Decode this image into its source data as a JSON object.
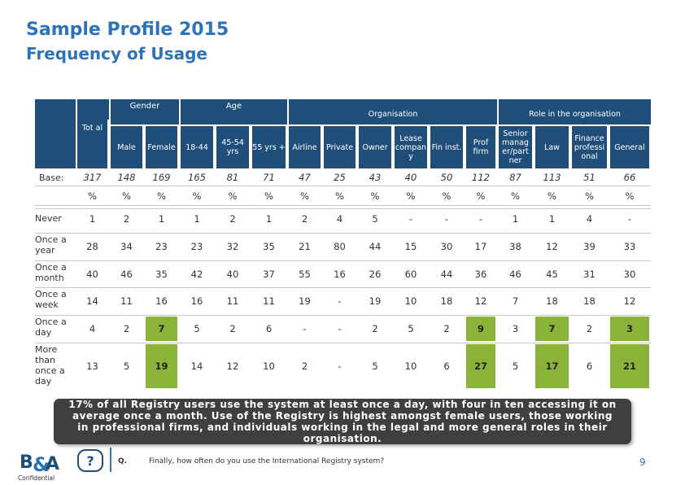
{
  "title": "Sample Profile 2015",
  "subtitle": "Frequency of Usage",
  "groups": {
    "gender": "Gender",
    "age": "Age",
    "organisation": "Organisation",
    "role": "Role in the organisation"
  },
  "columns": [
    "Tot al",
    "Male",
    "Female",
    "18-44",
    "45-54 yrs",
    "55 yrs +",
    "Airline",
    "Private",
    "Owner",
    "Lease compan y",
    "Fin inst.",
    "Prof firm",
    "Senior manag er/part ner",
    "Law",
    "Finance professi onal",
    "General"
  ],
  "base_label": "Base:",
  "base": [
    "317",
    "148",
    "169",
    "165",
    "81",
    "71",
    "47",
    "25",
    "43",
    "40",
    "50",
    "112",
    "87",
    "113",
    "51",
    "66"
  ],
  "pct": [
    "%",
    "%",
    "%",
    "%",
    "%",
    "%",
    "%",
    "%",
    "%",
    "%",
    "%",
    "%",
    "%",
    "%",
    "%",
    "%"
  ],
  "rows": [
    {
      "label": "Never",
      "values": [
        "1",
        "2",
        "1",
        "1",
        "2",
        "1",
        "2",
        "4",
        "5",
        "-",
        "-",
        "-",
        "1",
        "1",
        "4",
        "-"
      ]
    },
    {
      "label": "Once a year",
      "values": [
        "28",
        "34",
        "23",
        "23",
        "32",
        "35",
        "21",
        "80",
        "44",
        "15",
        "30",
        "17",
        "38",
        "12",
        "39",
        "33"
      ]
    },
    {
      "label": "Once a month",
      "values": [
        "40",
        "46",
        "35",
        "42",
        "40",
        "37",
        "55",
        "16",
        "26",
        "60",
        "44",
        "36",
        "46",
        "45",
        "31",
        "30"
      ]
    },
    {
      "label": "Once a week",
      "values": [
        "14",
        "11",
        "16",
        "16",
        "11",
        "11",
        "19",
        "-",
        "19",
        "10",
        "18",
        "12",
        "7",
        "18",
        "18",
        "12"
      ]
    },
    {
      "label": "Once a day",
      "values": [
        "4",
        "2",
        "7",
        "5",
        "2",
        "6",
        "-",
        "-",
        "2",
        "5",
        "2",
        "9",
        "3",
        "7",
        "2",
        "3"
      ]
    },
    {
      "label": "More than once a day",
      "values": [
        "13",
        "5",
        "19",
        "14",
        "12",
        "10",
        "2",
        "-",
        "5",
        "10",
        "6",
        "27",
        "5",
        "17",
        "6",
        "21"
      ]
    }
  ],
  "highlights": [
    [
      4,
      2
    ],
    [
      4,
      11
    ],
    [
      4,
      13
    ],
    [
      4,
      15
    ],
    [
      5,
      2
    ],
    [
      5,
      11
    ],
    [
      5,
      13
    ],
    [
      5,
      15
    ]
  ],
  "callout": "17% of all Registry users use the system at least once a day, with four in ten accessing it on average once a month. Use of the Registry is highest amongst female users, those working in professional firms, and individuals working in the legal and more general roles in their organisation.",
  "footer": {
    "help": "?",
    "q_label": "Q.",
    "question": "Finally, how often do you use the International Registry system?",
    "page": "9",
    "logo": "B&A",
    "confidential": "Confidential"
  },
  "colors": {
    "header": "#1f4e79",
    "highlight": "#8bb33a",
    "title": "#2f73b7",
    "callout": "#3f3f3f"
  }
}
